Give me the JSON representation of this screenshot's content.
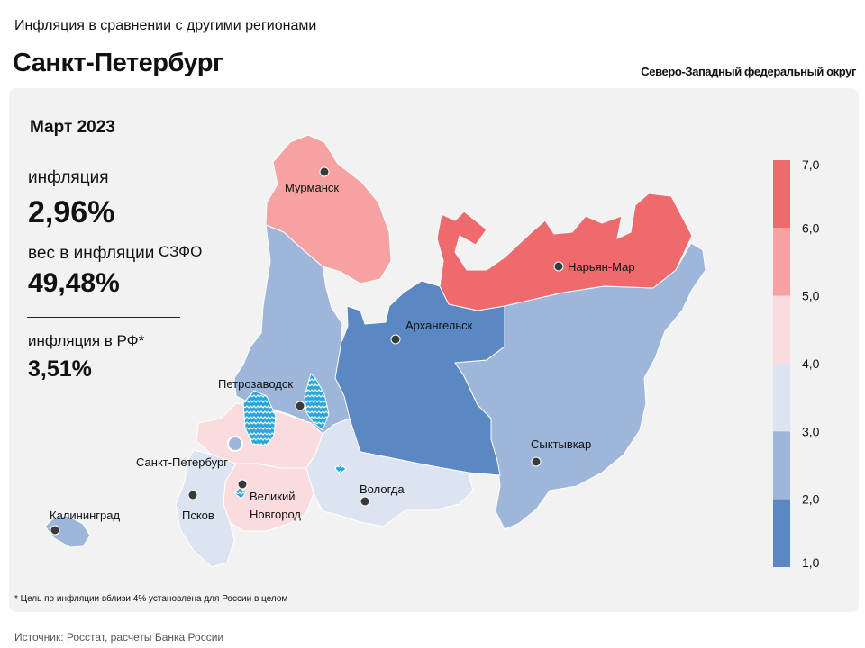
{
  "header": {
    "supertitle": "Инфляция в сравнении с другими регионами",
    "title": "Санкт-Петербург",
    "district": "Северо-Западный федеральный округ"
  },
  "stats": {
    "period": "Март 2023",
    "inflation_label": "инфляция",
    "inflation_value": "2,96%",
    "weight_label": "вес в инфляции",
    "weight_suffix": "СЗФО",
    "weight_value": "49,48%",
    "rf_label": "инфляция  в РФ*",
    "rf_value": "3,51%"
  },
  "footnote": "* Цель по инфляции вблизи 4% установлена для России в целом",
  "source": "Источник: Росстат, расчеты Банка России",
  "legend": {
    "ticks": [
      "7,0",
      "6,0",
      "5,0",
      "4,0",
      "3,0",
      "2,0",
      "1,0"
    ],
    "bands": [
      {
        "from": 6.0,
        "to": 7.0,
        "color": "#ee6a6c"
      },
      {
        "from": 5.0,
        "to": 6.0,
        "color": "#f6a2a3"
      },
      {
        "from": 4.0,
        "to": 5.0,
        "color": "#fadcdf"
      },
      {
        "from": 3.0,
        "to": 4.0,
        "color": "#dce4f2"
      },
      {
        "from": 2.0,
        "to": 3.0,
        "color": "#9db6da"
      },
      {
        "from": 1.0,
        "to": 2.0,
        "color": "#5b87c2"
      }
    ]
  },
  "map": {
    "cities": [
      {
        "name": "Мурманск"
      },
      {
        "name": "Нарьян-Мар"
      },
      {
        "name": "Архангельск"
      },
      {
        "name": "Петрозаводск"
      },
      {
        "name": "Сыктывкар"
      },
      {
        "name": "Санкт-Петербург"
      },
      {
        "name": "Великий"
      },
      {
        "name": "Новгород"
      },
      {
        "name": "Вологда"
      },
      {
        "name": "Псков"
      },
      {
        "name": "Калининград"
      }
    ]
  }
}
